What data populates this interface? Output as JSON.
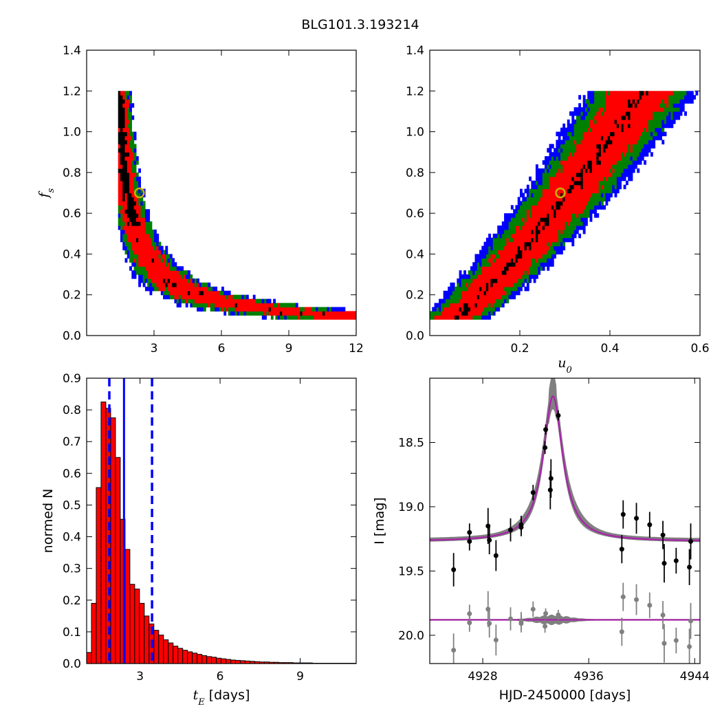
{
  "figure": {
    "title": "BLG101.3.193214"
  },
  "chart_data": [
    {
      "id": "fs_vs_tE",
      "type": "heatmap",
      "xlabel": "",
      "ylabel": "f_s",
      "xlim": [
        0,
        12
      ],
      "ylim": [
        0,
        1.4
      ],
      "xticks": [
        3,
        6,
        9,
        12
      ],
      "xtick_labels": [
        "3",
        "6",
        "9",
        "12"
      ],
      "yticks": [
        0,
        0.2,
        0.4,
        0.6,
        0.8,
        1.0,
        1.2,
        1.4
      ],
      "ytick_labels": [
        "0.0",
        "0.2",
        "0.4",
        "0.6",
        "0.8",
        "1.0",
        "1.2",
        "1.4"
      ],
      "levels": [
        {
          "name": "outer",
          "color": "#0000ff"
        },
        {
          "name": "middle",
          "color": "#008000"
        },
        {
          "name": "inner",
          "color": "#ff0000"
        },
        {
          "name": "core",
          "color": "#000000"
        }
      ],
      "best_fit": {
        "x": 2.35,
        "y": 0.7,
        "color": "#c8b400"
      }
    },
    {
      "id": "fs_vs_u0",
      "type": "heatmap",
      "xlabel": "u_0",
      "ylabel": "",
      "xlim": [
        0,
        0.6
      ],
      "ylim": [
        0,
        1.4
      ],
      "xticks": [
        0.2,
        0.4,
        0.6
      ],
      "xtick_labels": [
        "0.2",
        "0.4",
        "0.6"
      ],
      "yticks": [
        0,
        0.2,
        0.4,
        0.6,
        0.8,
        1.0,
        1.2,
        1.4
      ],
      "ytick_labels": [
        "0.0",
        "0.2",
        "0.4",
        "0.6",
        "0.8",
        "1.0",
        "1.2",
        "1.4"
      ],
      "levels": [
        {
          "name": "outer",
          "color": "#0000ff"
        },
        {
          "name": "middle",
          "color": "#008000"
        },
        {
          "name": "inner",
          "color": "#ff0000"
        },
        {
          "name": "core",
          "color": "#000000"
        }
      ],
      "best_fit": {
        "x": 0.29,
        "y": 0.7,
        "color": "#c8b400"
      }
    },
    {
      "id": "tE_histogram",
      "type": "bar",
      "xlabel": "t_E",
      "xlabel_suffix": "[days]",
      "ylabel": "normed N",
      "xlim": [
        1.0,
        11.1
      ],
      "ylim": [
        0,
        0.9
      ],
      "xticks": [
        3,
        6,
        9
      ],
      "xtick_labels": [
        "3",
        "6",
        "9"
      ],
      "yticks": [
        0,
        0.1,
        0.2,
        0.3,
        0.4,
        0.5,
        0.6,
        0.7,
        0.8,
        0.9
      ],
      "ytick_labels": [
        "0.0",
        "0.1",
        "0.2",
        "0.3",
        "0.4",
        "0.5",
        "0.6",
        "0.7",
        "0.8",
        "0.9"
      ],
      "bar_color": "#ff0000",
      "bin_start": 1.0,
      "bin_width": 0.18,
      "values": [
        0.035,
        0.19,
        0.555,
        0.825,
        0.805,
        0.775,
        0.65,
        0.455,
        0.36,
        0.25,
        0.235,
        0.19,
        0.15,
        0.125,
        0.105,
        0.09,
        0.075,
        0.065,
        0.055,
        0.048,
        0.042,
        0.037,
        0.033,
        0.029,
        0.025,
        0.022,
        0.02,
        0.017,
        0.015,
        0.013,
        0.011,
        0.01,
        0.009,
        0.008,
        0.007,
        0.006,
        0.005,
        0.005,
        0.004,
        0.004,
        0.003,
        0.003,
        0.003,
        0.002,
        0.002,
        0.002,
        0.002,
        0.001,
        0.001,
        0.001,
        0.001,
        0.001,
        0.001,
        0.001,
        0.001,
        0.001
      ],
      "median_line": {
        "x": 2.4,
        "color": "#0000ff"
      },
      "interval_lines": [
        {
          "x": 1.85,
          "color": "#0000ff"
        },
        {
          "x": 3.45,
          "color": "#0000ff"
        }
      ]
    },
    {
      "id": "lightcurve",
      "type": "scatter",
      "xlabel": "HJD-2450000 [days]",
      "ylabel": "I [mag]",
      "xlim": [
        4924,
        4944.4
      ],
      "ylim": [
        20.22,
        18.0
      ],
      "y_inverted": true,
      "xticks": [
        4928,
        4936,
        4944
      ],
      "xtick_labels": [
        "4928",
        "4936",
        "4944"
      ],
      "yticks": [
        18.5,
        19.0,
        19.5,
        20.0
      ],
      "ytick_labels": [
        "18.5",
        "19.0",
        "19.5",
        "20.0"
      ],
      "model": {
        "t0": 4933.3,
        "baseline": 19.27,
        "amplitude": 1.13,
        "width": 0.85,
        "color": "#aa22aa",
        "band_color": "#808080"
      },
      "residual_offset": 19.88,
      "points": [
        {
          "x": 4925.8,
          "y": 19.49,
          "err": 0.13
        },
        {
          "x": 4927.0,
          "y": 19.2,
          "err": 0.07
        },
        {
          "x": 4927.0,
          "y": 19.27,
          "err": 0.07
        },
        {
          "x": 4928.4,
          "y": 19.15,
          "err": 0.14
        },
        {
          "x": 4928.5,
          "y": 19.26,
          "err": 0.11
        },
        {
          "x": 4929.0,
          "y": 19.38,
          "err": 0.12
        },
        {
          "x": 4930.1,
          "y": 19.18,
          "err": 0.09
        },
        {
          "x": 4930.9,
          "y": 19.16,
          "err": 0.07
        },
        {
          "x": 4930.9,
          "y": 19.14,
          "err": 0.07
        },
        {
          "x": 4931.8,
          "y": 18.89,
          "err": 0.06
        },
        {
          "x": 4932.7,
          "y": 18.54,
          "err": 0.05
        },
        {
          "x": 4932.75,
          "y": 18.4,
          "err": 0.04
        },
        {
          "x": 4933.1,
          "y": 18.87,
          "err": 0.15
        },
        {
          "x": 4933.15,
          "y": 18.78,
          "err": 0.15
        },
        {
          "x": 4933.7,
          "y": 18.29,
          "err": 0.04
        },
        {
          "x": 4938.5,
          "y": 19.33,
          "err": 0.11
        },
        {
          "x": 4938.6,
          "y": 19.06,
          "err": 0.11
        },
        {
          "x": 4939.6,
          "y": 19.09,
          "err": 0.12
        },
        {
          "x": 4940.6,
          "y": 19.14,
          "err": 0.1
        },
        {
          "x": 4941.6,
          "y": 19.22,
          "err": 0.11
        },
        {
          "x": 4941.7,
          "y": 19.44,
          "err": 0.15
        },
        {
          "x": 4942.6,
          "y": 19.42,
          "err": 0.1
        },
        {
          "x": 4943.6,
          "y": 19.47,
          "err": 0.14
        },
        {
          "x": 4943.7,
          "y": 19.27,
          "err": 0.14
        }
      ],
      "point_color": "#000000",
      "residual_color": "#808080"
    }
  ]
}
